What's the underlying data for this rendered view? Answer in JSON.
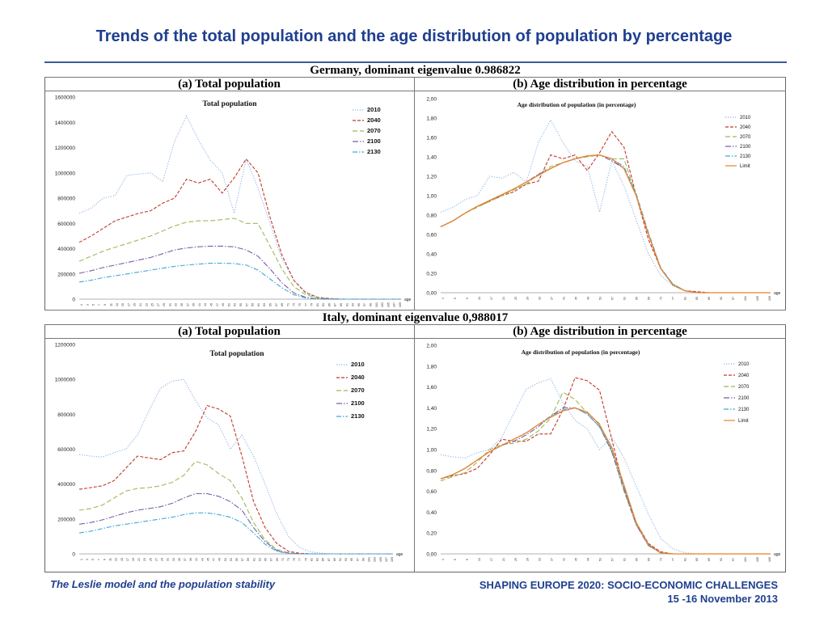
{
  "title": "Trends of the total population and the age distribution of population by percentage",
  "sections": [
    {
      "country": "Germany, dominant eigenvalue 0.986822",
      "panel_a": "(a)   Total population",
      "panel_b": "(b)   Age distribution in percentage"
    },
    {
      "country": "Italy, dominant eigenvalue 0,988017",
      "panel_a": "(a)   Total population",
      "panel_b": "(b)   Age distribution in percentage"
    }
  ],
  "footer": {
    "left": "The Leslie model and the population stability",
    "right_line1": "SHAPING EUROPE 2020: SOCIO-ECONOMIC CHALLENGES",
    "right_line2": "15 -16 November 2013"
  },
  "colors": {
    "2010": "#8fb4e3",
    "2040": "#c0392b",
    "2070": "#9bbb59",
    "2100": "#7a5ea6",
    "2130": "#3fa9d6",
    "Limit": "#e8822a"
  },
  "chart_data": [
    {
      "id": "germany-total",
      "type": "line",
      "title": "Total population",
      "xlabel": "age",
      "x": [
        1,
        5,
        9,
        13,
        17,
        21,
        25,
        29,
        33,
        37,
        41,
        45,
        49,
        53,
        57,
        61,
        65,
        69,
        73,
        77,
        81,
        85,
        89,
        93,
        97,
        101,
        105,
        109
      ],
      "x_tick_labels": [
        "1",
        "3",
        "5",
        "7",
        "9",
        "11",
        "13",
        "15",
        "17",
        "19",
        "21",
        "23",
        "25",
        "27",
        "29",
        "31",
        "33",
        "35",
        "37",
        "39",
        "41",
        "43",
        "45",
        "47",
        "49",
        "51",
        "53",
        "55",
        "57",
        "59",
        "61",
        "63",
        "65",
        "67",
        "69",
        "71",
        "73",
        "75",
        "77",
        "79",
        "81",
        "83",
        "85",
        "87",
        "89",
        "91",
        "93",
        "95",
        "97",
        "99",
        "101",
        "103",
        "105",
        "107",
        "109"
      ],
      "y_ticks": [
        "0",
        "200000",
        "400000",
        "600000",
        "800000",
        "1000000",
        "1200000",
        "1400000",
        "1600000"
      ],
      "ylim": [
        0,
        1600000
      ],
      "series": [
        {
          "name": "2010",
          "dash": "dot",
          "values": [
            680000,
            720000,
            800000,
            820000,
            980000,
            990000,
            1000000,
            930000,
            1250000,
            1450000,
            1260000,
            1100000,
            1000000,
            680000,
            1110000,
            880000,
            600000,
            320000,
            150000,
            60000,
            15000,
            5000,
            1000,
            0,
            0,
            0,
            0,
            0
          ]
        },
        {
          "name": "2040",
          "dash": "dash",
          "values": [
            450000,
            500000,
            560000,
            620000,
            650000,
            680000,
            700000,
            760000,
            800000,
            950000,
            920000,
            950000,
            840000,
            960000,
            1110000,
            1000000,
            650000,
            350000,
            150000,
            50000,
            15000,
            5000,
            0,
            0,
            0,
            0,
            0,
            0
          ]
        },
        {
          "name": "2070",
          "dash": "dashlong",
          "values": [
            300000,
            340000,
            380000,
            410000,
            440000,
            470000,
            500000,
            540000,
            580000,
            610000,
            620000,
            620000,
            630000,
            640000,
            600000,
            600000,
            420000,
            240000,
            100000,
            35000,
            10000,
            2000,
            0,
            0,
            0,
            0,
            0,
            0
          ]
        },
        {
          "name": "2100",
          "dash": "dashdot",
          "values": [
            205000,
            225000,
            250000,
            270000,
            290000,
            310000,
            330000,
            360000,
            390000,
            405000,
            415000,
            420000,
            420000,
            415000,
            390000,
            340000,
            240000,
            130000,
            50000,
            15000,
            3000,
            0,
            0,
            0,
            0,
            0,
            0,
            0
          ]
        },
        {
          "name": "2130",
          "dash": "dashdot2",
          "values": [
            135000,
            150000,
            170000,
            185000,
            200000,
            215000,
            230000,
            245000,
            260000,
            270000,
            278000,
            284000,
            285000,
            282000,
            270000,
            230000,
            160000,
            90000,
            35000,
            10000,
            2000,
            0,
            0,
            0,
            0,
            0,
            0,
            0
          ]
        }
      ],
      "legend": "top-right"
    },
    {
      "id": "germany-age",
      "type": "line",
      "title": "Age distribution of population (in percentage)",
      "xlabel": "age",
      "x": [
        1,
        5,
        9,
        13,
        17,
        21,
        25,
        29,
        33,
        37,
        41,
        45,
        49,
        53,
        57,
        61,
        65,
        69,
        73,
        77,
        81,
        85,
        89,
        93,
        97,
        101,
        105,
        109
      ],
      "x_tick_labels": [
        "1",
        "5",
        "9",
        "13",
        "17",
        "21",
        "25",
        "29",
        "33",
        "37",
        "41",
        "45",
        "49",
        "53",
        "57",
        "61",
        "65",
        "69",
        "73",
        "77",
        "81",
        "85",
        "89",
        "93",
        "97",
        "101",
        "105",
        "109"
      ],
      "y_ticks": [
        "0,00",
        "0,20",
        "0,40",
        "0,60",
        "0,80",
        "1,00",
        "1,20",
        "1,40",
        "1,60",
        "1,80",
        "2,00"
      ],
      "ylim": [
        0,
        2.0
      ],
      "series": [
        {
          "name": "2010",
          "dash": "dot",
          "values": [
            0.83,
            0.88,
            0.96,
            1.0,
            1.2,
            1.18,
            1.24,
            1.14,
            1.55,
            1.78,
            1.55,
            1.36,
            1.3,
            0.83,
            1.36,
            1.1,
            0.75,
            0.4,
            0.18,
            0.07,
            0.02,
            0.01,
            0,
            0,
            0,
            0,
            0,
            0
          ]
        },
        {
          "name": "2040",
          "dash": "dash",
          "values": [
            0.68,
            0.74,
            0.82,
            0.89,
            0.94,
            1.0,
            1.04,
            1.12,
            1.15,
            1.42,
            1.38,
            1.42,
            1.26,
            1.44,
            1.66,
            1.5,
            1.0,
            0.55,
            0.25,
            0.08,
            0.02,
            0.01,
            0,
            0,
            0,
            0,
            0,
            0
          ]
        },
        {
          "name": "2070",
          "dash": "dashlong",
          "values": [
            0.68,
            0.74,
            0.82,
            0.88,
            0.94,
            1.0,
            1.06,
            1.12,
            1.22,
            1.3,
            1.34,
            1.38,
            1.4,
            1.42,
            1.38,
            1.38,
            1.0,
            0.6,
            0.25,
            0.09,
            0.02,
            0,
            0,
            0,
            0,
            0,
            0,
            0
          ]
        },
        {
          "name": "2100",
          "dash": "dashdot",
          "values": [
            0.68,
            0.74,
            0.82,
            0.89,
            0.95,
            1.01,
            1.07,
            1.14,
            1.22,
            1.28,
            1.34,
            1.38,
            1.41,
            1.42,
            1.36,
            1.28,
            1.0,
            0.6,
            0.25,
            0.08,
            0.02,
            0,
            0,
            0,
            0,
            0,
            0,
            0
          ]
        },
        {
          "name": "2130",
          "dash": "dashdot2",
          "values": [
            0.68,
            0.74,
            0.82,
            0.89,
            0.95,
            1.01,
            1.07,
            1.14,
            1.21,
            1.28,
            1.34,
            1.38,
            1.41,
            1.42,
            1.38,
            1.3,
            1.02,
            0.62,
            0.26,
            0.09,
            0.02,
            0,
            0,
            0,
            0,
            0,
            0,
            0
          ]
        },
        {
          "name": "Limit",
          "dash": "solid",
          "values": [
            0.68,
            0.74,
            0.82,
            0.89,
            0.95,
            1.01,
            1.07,
            1.14,
            1.21,
            1.28,
            1.34,
            1.38,
            1.41,
            1.42,
            1.38,
            1.28,
            1.0,
            0.6,
            0.25,
            0.08,
            0.02,
            0,
            0,
            0,
            0,
            0,
            0,
            0
          ]
        }
      ],
      "legend": "right"
    },
    {
      "id": "italy-total",
      "type": "line",
      "title": "Total  population",
      "xlabel": "age",
      "x": [
        1,
        5,
        9,
        13,
        17,
        21,
        25,
        29,
        33,
        37,
        41,
        45,
        49,
        53,
        57,
        61,
        65,
        69,
        73,
        77,
        81,
        85,
        89,
        93,
        97,
        101,
        105,
        109
      ],
      "x_tick_labels": [
        "1",
        "3",
        "5",
        "7",
        "9",
        "11",
        "13",
        "15",
        "17",
        "19",
        "21",
        "23",
        "25",
        "27",
        "29",
        "31",
        "33",
        "35",
        "37",
        "39",
        "41",
        "43",
        "45",
        "47",
        "49",
        "51",
        "53",
        "55",
        "57",
        "59",
        "61",
        "63",
        "65",
        "67",
        "69",
        "71",
        "73",
        "75",
        "77",
        "79",
        "81",
        "83",
        "85",
        "87",
        "89",
        "91",
        "93",
        "95",
        "97",
        "99",
        "101",
        "103",
        "105",
        "107",
        "109"
      ],
      "y_ticks": [
        "0",
        "200000",
        "400000",
        "600000",
        "800000",
        "1000000",
        "1200000"
      ],
      "ylim": [
        0,
        1200000
      ],
      "series": [
        {
          "name": "2010",
          "dash": "dot",
          "values": [
            570000,
            560000,
            555000,
            580000,
            600000,
            680000,
            820000,
            950000,
            990000,
            1000000,
            880000,
            780000,
            740000,
            600000,
            680000,
            560000,
            400000,
            230000,
            100000,
            35000,
            10000,
            3000,
            0,
            0,
            0,
            0,
            0,
            0
          ]
        },
        {
          "name": "2040",
          "dash": "dash",
          "values": [
            370000,
            380000,
            390000,
            420000,
            490000,
            560000,
            550000,
            540000,
            580000,
            590000,
            700000,
            850000,
            830000,
            790000,
            560000,
            300000,
            150000,
            60000,
            15000,
            3000,
            0,
            0,
            0,
            0,
            0,
            0,
            0,
            0
          ]
        },
        {
          "name": "2070",
          "dash": "dashlong",
          "values": [
            250000,
            260000,
            280000,
            320000,
            360000,
            375000,
            380000,
            390000,
            410000,
            450000,
            530000,
            510000,
            460000,
            420000,
            320000,
            180000,
            80000,
            25000,
            5000,
            0,
            0,
            0,
            0,
            0,
            0,
            0,
            0,
            0
          ]
        },
        {
          "name": "2100",
          "dash": "dashdot",
          "values": [
            170000,
            180000,
            195000,
            215000,
            235000,
            250000,
            260000,
            270000,
            290000,
            320000,
            345000,
            345000,
            330000,
            300000,
            250000,
            150000,
            70000,
            20000,
            5000,
            0,
            0,
            0,
            0,
            0,
            0,
            0,
            0,
            0
          ]
        },
        {
          "name": "2130",
          "dash": "dashdot2",
          "values": [
            120000,
            130000,
            145000,
            160000,
            170000,
            180000,
            190000,
            200000,
            210000,
            225000,
            235000,
            235000,
            225000,
            210000,
            180000,
            120000,
            55000,
            15000,
            3000,
            0,
            0,
            0,
            0,
            0,
            0,
            0,
            0,
            0
          ]
        }
      ],
      "legend": "top-right"
    },
    {
      "id": "italy-age",
      "type": "line",
      "title": "Age distribution of population (in percentage)",
      "xlabel": "age",
      "x": [
        1,
        5,
        9,
        13,
        17,
        21,
        25,
        29,
        33,
        37,
        41,
        45,
        49,
        53,
        57,
        61,
        65,
        69,
        73,
        77,
        81,
        85,
        89,
        93,
        97,
        101,
        105,
        109
      ],
      "x_tick_labels": [
        "1",
        "5",
        "9",
        "13",
        "17",
        "21",
        "25",
        "29",
        "33",
        "37",
        "41",
        "45",
        "49",
        "53",
        "57",
        "61",
        "65",
        "69",
        "73",
        "77",
        "81",
        "85",
        "89",
        "93",
        "97",
        "101",
        "105",
        "109"
      ],
      "y_ticks": [
        "0,00",
        "0,20",
        "0,40",
        "0,60",
        "0,80",
        "1,00",
        "1,20",
        "1,40",
        "1,60",
        "1,80",
        "2,00"
      ],
      "ylim": [
        0,
        2.0
      ],
      "series": [
        {
          "name": "2010",
          "dash": "dot",
          "values": [
            0.95,
            0.93,
            0.92,
            0.97,
            1.0,
            1.12,
            1.35,
            1.58,
            1.64,
            1.68,
            1.45,
            1.28,
            1.2,
            1.0,
            1.12,
            0.92,
            0.65,
            0.38,
            0.15,
            0.05,
            0.01,
            0,
            0,
            0,
            0,
            0,
            0,
            0
          ]
        },
        {
          "name": "2040",
          "dash": "dash",
          "values": [
            0.72,
            0.75,
            0.77,
            0.82,
            0.95,
            1.1,
            1.08,
            1.08,
            1.15,
            1.15,
            1.38,
            1.69,
            1.66,
            1.57,
            1.1,
            0.62,
            0.3,
            0.1,
            0.02,
            0,
            0,
            0,
            0,
            0,
            0,
            0,
            0,
            0
          ]
        },
        {
          "name": "2070",
          "dash": "dashlong",
          "values": [
            0.7,
            0.74,
            0.78,
            0.88,
            1.0,
            1.05,
            1.06,
            1.1,
            1.18,
            1.3,
            1.55,
            1.48,
            1.35,
            1.25,
            0.98,
            0.6,
            0.28,
            0.08,
            0.01,
            0,
            0,
            0,
            0,
            0,
            0,
            0,
            0,
            0
          ]
        },
        {
          "name": "2100",
          "dash": "dashdot",
          "values": [
            0.72,
            0.76,
            0.82,
            0.9,
            0.98,
            1.04,
            1.08,
            1.14,
            1.22,
            1.32,
            1.4,
            1.4,
            1.34,
            1.22,
            0.98,
            0.62,
            0.28,
            0.08,
            0.01,
            0,
            0,
            0,
            0,
            0,
            0,
            0,
            0,
            0
          ]
        },
        {
          "name": "2130",
          "dash": "dashdot2",
          "values": [
            0.72,
            0.76,
            0.82,
            0.9,
            0.98,
            1.04,
            1.1,
            1.16,
            1.24,
            1.32,
            1.38,
            1.4,
            1.34,
            1.22,
            1.0,
            0.64,
            0.3,
            0.08,
            0.01,
            0,
            0,
            0,
            0,
            0,
            0,
            0,
            0,
            0
          ]
        },
        {
          "name": "Limit",
          "dash": "solid",
          "values": [
            0.72,
            0.76,
            0.82,
            0.9,
            0.98,
            1.04,
            1.1,
            1.16,
            1.24,
            1.31,
            1.37,
            1.4,
            1.36,
            1.24,
            1.02,
            0.66,
            0.3,
            0.09,
            0.01,
            0,
            0,
            0,
            0,
            0,
            0,
            0,
            0,
            0
          ]
        }
      ],
      "legend": "right"
    }
  ]
}
